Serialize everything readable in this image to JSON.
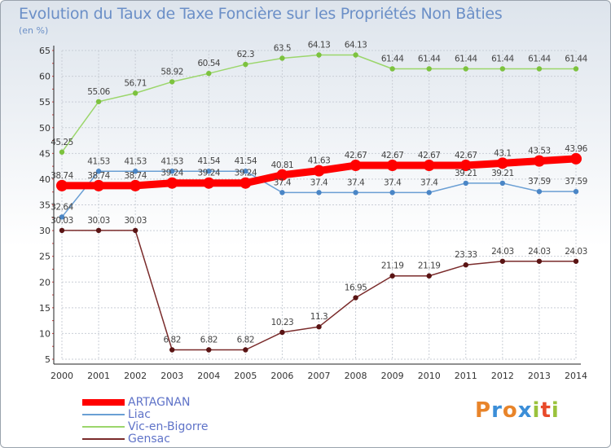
{
  "header": {
    "title": "Evolution du Taux de Taxe Foncière sur les Propriétés Non Bâties",
    "unit": "(en %)"
  },
  "logo": {
    "chars": [
      "P",
      "r",
      "o",
      "x",
      "i",
      "t",
      "i"
    ],
    "colors": [
      "#e8842a",
      "#3b8ed8",
      "#e8842a",
      "#3b8ed8",
      "#9ac23c",
      "#e84a2a",
      "#9ac23c"
    ]
  },
  "chart_data": {
    "type": "line",
    "title": "Evolution du Taux de Taxe Foncière sur les Propriétés Non Bâties",
    "ylabel": "(en %)",
    "xlabel": "",
    "ylim": [
      5,
      65
    ],
    "yticks": [
      5,
      10,
      15,
      20,
      25,
      30,
      35,
      40,
      45,
      50,
      55,
      60,
      65
    ],
    "grid": true,
    "x": [
      "2000",
      "2001",
      "2002",
      "2003",
      "2004",
      "2005",
      "2006",
      "2007",
      "2008",
      "2009",
      "2010",
      "2011",
      "2012",
      "2013",
      "2014"
    ],
    "series": [
      {
        "name": "ARTAGNAN",
        "color": "#ff0000",
        "marker": "#ff0000",
        "width": 9,
        "values": [
          38.74,
          38.74,
          38.74,
          39.24,
          39.24,
          39.24,
          40.81,
          41.63,
          42.67,
          42.67,
          42.67,
          42.67,
          43.1,
          43.53,
          43.96
        ],
        "labels": [
          "38.74",
          "38.74",
          "38.74",
          "39.24",
          "39.24",
          "39.24",
          "40.81",
          "41.63",
          "42.67",
          "42.67",
          "42.67",
          "42.67",
          "43.1",
          "43.53",
          "43.96"
        ]
      },
      {
        "name": "Liac",
        "color": "#6a9fd4",
        "marker": "#4a86c6",
        "width": 1.5,
        "values": [
          32.64,
          41.53,
          41.53,
          41.53,
          41.54,
          41.54,
          37.4,
          37.4,
          37.4,
          37.4,
          37.4,
          39.21,
          39.21,
          37.59,
          37.59
        ],
        "labels": [
          "32.64",
          "41.53",
          "41.53",
          "41.53",
          "41.54",
          "41.54",
          "37.4",
          "37.4",
          "37.4",
          "37.4",
          "37.4",
          "39.21",
          "39.21",
          "37.59",
          "37.59"
        ]
      },
      {
        "name": "Vic-en-Bigorre",
        "color": "#9bd66b",
        "marker": "#7cc23e",
        "width": 1.5,
        "values": [
          45.25,
          55.06,
          56.71,
          58.92,
          60.54,
          62.3,
          63.5,
          64.13,
          64.13,
          61.44,
          61.44,
          61.44,
          61.44,
          61.44,
          61.44
        ],
        "labels": [
          "45.25",
          "55.06",
          "56.71",
          "58.92",
          "60.54",
          "62.3",
          "63.5",
          "64.13",
          "64.13",
          "61.44",
          "61.44",
          "61.44",
          "61.44",
          "61.44",
          "61.44"
        ]
      },
      {
        "name": "Gensac",
        "color": "#7a2b2b",
        "marker": "#5a1414",
        "width": 1.5,
        "values": [
          30.03,
          30.03,
          30.03,
          6.82,
          6.82,
          6.82,
          10.23,
          11.3,
          16.95,
          21.19,
          21.19,
          23.33,
          24.03,
          24.03,
          24.03
        ],
        "labels": [
          "30.03",
          "30.03",
          "30.03",
          "6.82",
          "6.82",
          "6.82",
          "10.23",
          "11.3",
          "16.95",
          "21.19",
          "21.19",
          "23.33",
          "24.03",
          "24.03",
          "24.03"
        ]
      }
    ],
    "legend": [
      "ARTAGNAN",
      "Liac",
      "Vic-en-Bigorre",
      "Gensac"
    ]
  }
}
